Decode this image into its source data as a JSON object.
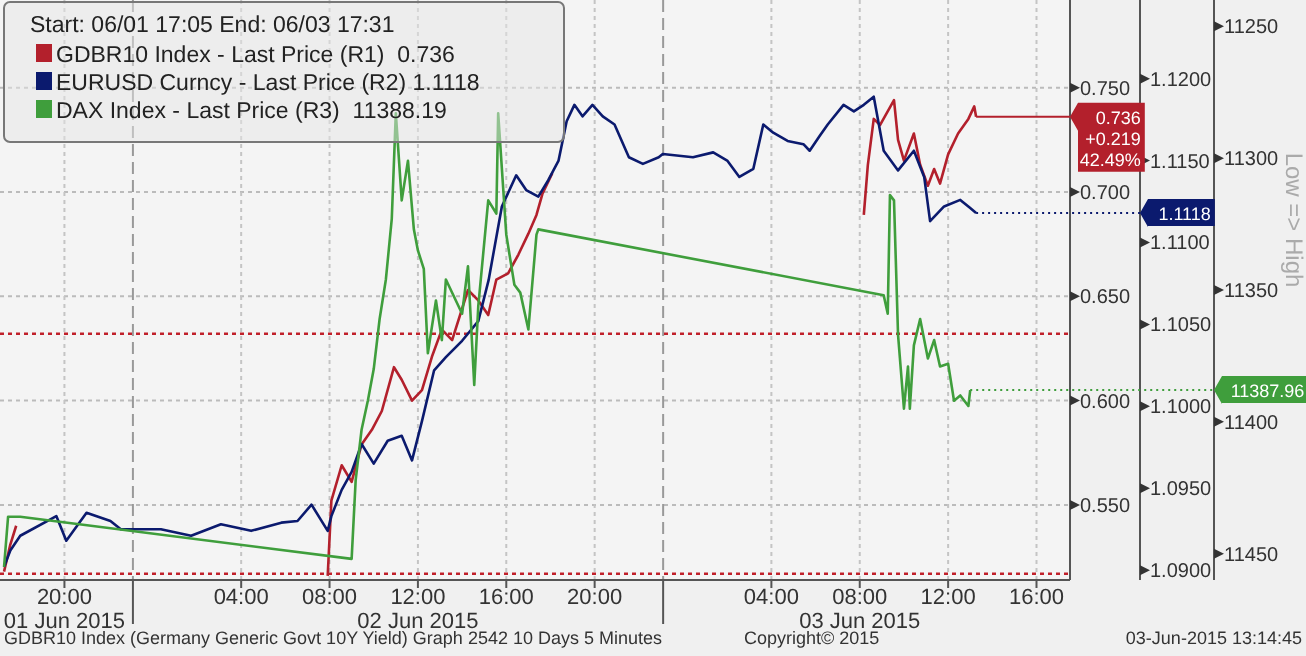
{
  "chart_data": {
    "type": "line",
    "title": null,
    "legend_title": "Start: 06/01 17:05 End: 06/03 17:31",
    "legend": "top left",
    "grid": true,
    "xlim": [
      "2015-06-01T17:05",
      "2015-06-03T17:31"
    ],
    "xticks": [
      {
        "value": "2015-06-01T20:00",
        "label": "20:00\n01 Jun 2015"
      },
      {
        "value": "2015-06-01T23:06",
        "label": null
      },
      {
        "value": "2015-06-02T04:00",
        "label": "04:00"
      },
      {
        "value": "2015-06-02T08:00",
        "label": "08:00"
      },
      {
        "value": "2015-06-02T12:00",
        "label": "12:00\n02 Jun 2015"
      },
      {
        "value": "2015-06-02T16:00",
        "label": "16:00"
      },
      {
        "value": "2015-06-02T20:00",
        "label": "20:00"
      },
      {
        "value": "2015-06-02T23:06",
        "label": null
      },
      {
        "value": "2015-06-03T04:00",
        "label": "04:00"
      },
      {
        "value": "2015-06-03T08:00",
        "label": "08:00\n03 Jun 2015"
      },
      {
        "value": "2015-06-03T12:00",
        "label": "12:00"
      },
      {
        "value": "2015-06-03T16:00",
        "label": "16:00"
      }
    ],
    "ylim": [
      0.514,
      0.792
    ],
    "yticks": [
      {
        "value": 0.55,
        "label": "0.550"
      },
      {
        "value": 0.6,
        "label": "0.600"
      },
      {
        "value": 0.65,
        "label": "0.650"
      },
      {
        "value": 0.7,
        "label": "0.700"
      },
      {
        "value": 0.75,
        "label": "0.750"
      }
    ],
    "y2lim": [
      1.0894,
      1.1248
    ],
    "y2ticks": [
      {
        "value": 1.09,
        "label": "1.0900"
      },
      {
        "value": 1.095,
        "label": "1.0950"
      },
      {
        "value": 1.1,
        "label": "1.1000"
      },
      {
        "value": 1.105,
        "label": "1.1050"
      },
      {
        "value": 1.11,
        "label": "1.1100"
      },
      {
        "value": 1.115,
        "label": "1.1150"
      },
      {
        "value": 1.12,
        "label": "1.1200"
      }
    ],
    "y3lim": [
      11460,
      11240
    ],
    "y3ticks": [
      11250,
      11300,
      11350,
      11400,
      11450
    ],
    "y3label": "Low => High",
    "ref_lines": [
      {
        "axis": "y",
        "value": 0.517,
        "color": "#c0202a",
        "line_style": "dotted"
      },
      {
        "axis": "y",
        "value": 0.632,
        "color": "#c0202a",
        "line_style": "dotted"
      }
    ],
    "annotations": [
      "GDBR10 Index (Germany Generic Govt 10Y Yield) Graph 2542 10 Days 5 Minutes",
      "Copyright© 2015",
      "03-Jun-2015 13:14:45"
    ],
    "series": [
      {
        "name": "GDBR10 Index - Last Price (R1)  0.736",
        "color": "#b3202c",
        "axis": "y",
        "x": [
          "2015-06-01T17:16",
          "2015-06-01T17:33",
          "2015-06-01T17:49",
          "2015-06-02T01:00",
          "2015-06-02T07:55",
          "2015-06-02T08:05",
          "2015-06-02T08:33",
          "2015-06-02T09:00",
          "2015-06-02T09:27",
          "2015-06-02T09:55",
          "2015-06-02T10:22",
          "2015-06-02T10:55",
          "2015-06-02T11:16",
          "2015-06-02T11:44",
          "2015-06-02T12:11",
          "2015-06-02T12:38",
          "2015-06-02T13:05",
          "2015-06-02T13:33",
          "2015-06-02T14:16",
          "2015-06-02T14:44",
          "2015-06-02T15:11",
          "2015-06-02T15:33",
          "2015-06-02T16:05",
          "2015-06-02T16:33",
          "2015-06-02T17:00",
          "2015-06-02T17:22",
          "2015-06-02T17:38",
          "2015-06-02T18:05",
          "2015-06-03T02:00",
          "2015-06-03T08:11",
          "2015-06-03T08:22",
          "2015-06-03T08:38",
          "2015-06-03T08:55",
          "2015-06-03T09:33",
          "2015-06-03T09:44",
          "2015-06-03T10:00",
          "2015-06-03T10:27",
          "2015-06-03T10:44",
          "2015-06-03T11:05",
          "2015-06-03T11:22",
          "2015-06-03T11:38",
          "2015-06-03T12:00",
          "2015-06-03T12:27",
          "2015-06-03T12:55",
          "2015-06-03T13:11",
          "2015-06-03T13:16"
        ],
        "values": [
          0.518,
          0.531,
          0.54,
          null,
          0.516,
          0.552,
          0.569,
          0.561,
          0.579,
          0.586,
          0.595,
          0.616,
          0.61,
          0.6,
          0.605,
          0.621,
          0.634,
          0.629,
          0.653,
          0.648,
          0.641,
          0.658,
          0.661,
          0.67,
          0.68,
          0.689,
          0.699,
          0.709,
          null,
          0.689,
          0.713,
          0.735,
          0.732,
          0.744,
          0.725,
          0.715,
          0.728,
          0.713,
          0.703,
          0.711,
          0.704,
          0.718,
          0.728,
          0.735,
          0.741,
          0.736
        ],
        "value_labels": [
          null,
          null,
          null,
          null,
          null,
          null,
          null,
          null,
          null,
          null,
          null,
          null,
          null,
          null,
          null,
          null,
          null,
          null,
          null,
          null,
          null,
          null,
          null,
          null,
          null,
          null,
          null,
          null,
          null,
          null,
          null,
          null,
          null,
          null,
          null,
          null,
          null,
          null,
          null,
          null,
          null,
          null,
          null,
          null,
          null,
          "0.736\n+0.219\n42.49%"
        ]
      },
      {
        "name": "EURUSD Curncy - Last Price (R2) 1.1118",
        "color": "#0b1a6e",
        "axis": "y2",
        "x": [
          "2015-06-01T17:16",
          "2015-06-01T17:33",
          "2015-06-01T18:00",
          "2015-06-01T19:38",
          "2015-06-01T20:05",
          "2015-06-01T21:00",
          "2015-06-01T22:05",
          "2015-06-01T22:33",
          "2015-06-02T00:22",
          "2015-06-02T01:44",
          "2015-06-02T03:05",
          "2015-06-02T04:27",
          "2015-06-02T05:49",
          "2015-06-02T06:33",
          "2015-06-02T07:11",
          "2015-06-02T07:55",
          "2015-06-02T08:05",
          "2015-06-02T08:33",
          "2015-06-02T09:00",
          "2015-06-02T09:27",
          "2015-06-02T10:00",
          "2015-06-02T10:38",
          "2015-06-02T11:16",
          "2015-06-02T11:44",
          "2015-06-02T12:11",
          "2015-06-02T12:44",
          "2015-06-02T13:16",
          "2015-06-02T14:00",
          "2015-06-02T14:44",
          "2015-06-02T15:12",
          "2015-06-02T15:48",
          "2015-06-02T16:27",
          "2015-06-02T16:54",
          "2015-06-02T17:27",
          "2015-06-02T17:54",
          "2015-06-02T18:22",
          "2015-06-02T18:44",
          "2015-06-02T19:05",
          "2015-06-02T19:27",
          "2015-06-02T19:54",
          "2015-06-02T20:22",
          "2015-06-02T20:54",
          "2015-06-02T21:33",
          "2015-06-02T22:11",
          "2015-06-02T22:54",
          "2015-06-02T23:05",
          "2015-06-03T00:27",
          "2015-06-03T01:22",
          "2015-06-03T02:00",
          "2015-06-03T02:33",
          "2015-06-03T03:11",
          "2015-06-03T03:38",
          "2015-06-03T04:05",
          "2015-06-03T04:44",
          "2015-06-03T05:27",
          "2015-06-03T05:44",
          "2015-06-03T06:11",
          "2015-06-03T06:33",
          "2015-06-03T07:16",
          "2015-06-03T07:44",
          "2015-06-03T08:11",
          "2015-06-03T08:38",
          "2015-06-03T09:05",
          "2015-06-03T09:44",
          "2015-06-03T10:27",
          "2015-06-03T10:55",
          "2015-06-03T11:11",
          "2015-06-03T11:49",
          "2015-06-03T12:33",
          "2015-06-03T13:00",
          "2015-06-03T13:16"
        ],
        "values": [
          1.0902,
          1.0912,
          1.0921,
          1.0933,
          1.0918,
          1.0935,
          1.093,
          1.0925,
          1.0925,
          1.0921,
          1.0928,
          1.0924,
          1.0929,
          1.093,
          1.094,
          1.0924,
          1.0933,
          1.0949,
          1.096,
          1.0977,
          1.0965,
          1.0979,
          1.0982,
          1.0967,
          1.0991,
          1.1022,
          1.103,
          1.104,
          1.1052,
          1.1077,
          1.1122,
          1.1141,
          1.1132,
          1.1128,
          1.1138,
          1.115,
          1.1174,
          1.1184,
          1.1177,
          1.1184,
          1.1177,
          1.1172,
          1.1152,
          1.1148,
          1.1152,
          1.1154,
          1.1152,
          1.1155,
          1.115,
          1.114,
          1.1145,
          1.1172,
          1.1167,
          1.1162,
          1.116,
          1.1156,
          1.1165,
          1.1172,
          1.1184,
          1.118,
          1.1184,
          1.1189,
          1.1156,
          1.1144,
          1.1156,
          1.114,
          1.1113,
          1.1122,
          1.1126,
          1.1121,
          1.1118
        ],
        "value_labels": [
          null,
          null,
          null,
          null,
          null,
          null,
          null,
          null,
          null,
          null,
          null,
          null,
          null,
          null,
          null,
          null,
          null,
          null,
          null,
          null,
          null,
          null,
          null,
          null,
          null,
          null,
          null,
          null,
          null,
          null,
          null,
          null,
          null,
          null,
          null,
          null,
          null,
          null,
          null,
          null,
          null,
          null,
          null,
          null,
          null,
          null,
          null,
          null,
          null,
          null,
          null,
          null,
          null,
          null,
          null,
          null,
          null,
          null,
          null,
          null,
          null,
          null,
          null,
          null,
          null,
          null,
          null,
          null,
          null,
          null,
          "1.1118"
        ]
      },
      {
        "name": "DAX Index - Last Price (R3)  11388.19",
        "color": "#3f9e3c",
        "axis": "y3",
        "x": [
          "2015-06-01T17:16",
          "2015-06-01T17:27",
          "2015-06-01T18:00",
          "2015-06-02T09:00",
          "2015-06-02T09:11",
          "2015-06-02T09:27",
          "2015-06-02T09:44",
          "2015-06-02T10:00",
          "2015-06-02T10:16",
          "2015-06-02T10:33",
          "2015-06-02T10:49",
          "2015-06-02T11:00",
          "2015-06-02T11:16",
          "2015-06-02T11:33",
          "2015-06-02T11:49",
          "2015-06-02T12:00",
          "2015-06-02T12:16",
          "2015-06-02T12:27",
          "2015-06-02T12:49",
          "2015-06-02T13:05",
          "2015-06-02T13:16",
          "2015-06-02T14:00",
          "2015-06-02T14:16",
          "2015-06-02T14:33",
          "2015-06-02T14:44",
          "2015-06-02T15:11",
          "2015-06-02T15:33",
          "2015-06-02T15:38",
          "2015-06-02T16:00",
          "2015-06-02T16:22",
          "2015-06-02T16:38",
          "2015-06-02T17:00",
          "2015-06-02T17:22",
          "2015-06-02T17:27",
          "2015-06-03T09:05",
          "2015-06-03T09:16",
          "2015-06-03T09:22",
          "2015-06-03T09:33",
          "2015-06-03T09:44",
          "2015-06-03T10:00",
          "2015-06-03T10:11",
          "2015-06-03T10:16",
          "2015-06-03T10:27",
          "2015-06-03T10:44",
          "2015-06-03T11:05",
          "2015-06-03T11:22",
          "2015-06-03T11:38",
          "2015-06-03T12:00",
          "2015-06-03T12:16",
          "2015-06-03T12:33",
          "2015-06-03T12:55",
          "2015-06-03T13:00"
        ],
        "values": [
          11455,
          11436,
          11436,
          11452,
          11422,
          11403,
          11392,
          11380,
          11361,
          11346,
          11323,
          11283,
          11316,
          11301,
          11327,
          11335,
          11342,
          11374,
          11354,
          11369,
          11346,
          11359,
          11341,
          11386,
          11356,
          11316,
          11321,
          11283,
          11329,
          11348,
          11351,
          11365,
          11329,
          11327,
          11352,
          11359,
          11314,
          11316,
          11367,
          11395,
          11379,
          11395,
          11371,
          11361,
          11376,
          11369,
          11379,
          11378,
          11392,
          11390,
          11394,
          11387.96
        ],
        "value_labels": [
          null,
          null,
          null,
          null,
          null,
          null,
          null,
          null,
          null,
          null,
          null,
          null,
          null,
          null,
          null,
          null,
          null,
          null,
          null,
          null,
          null,
          null,
          null,
          null,
          null,
          null,
          null,
          null,
          null,
          null,
          null,
          null,
          null,
          null,
          null,
          null,
          null,
          null,
          null,
          null,
          null,
          null,
          null,
          null,
          null,
          null,
          null,
          null,
          null,
          null,
          null,
          "11387.96"
        ]
      }
    ]
  }
}
